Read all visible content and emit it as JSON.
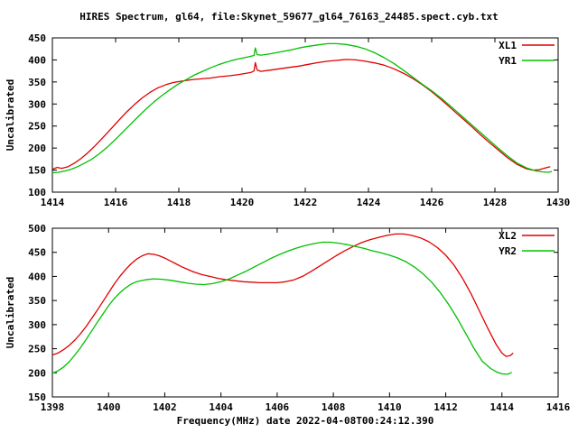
{
  "page": {
    "title": "HIRES Spectrum, gl64, file:Skynet_59677_gl64_76163_24485.spect.cyb.txt"
  },
  "colors": {
    "series_red": "#e00000",
    "series_green": "#00c000",
    "axis": "#000000",
    "background": "#ffffff"
  },
  "chart_data": [
    {
      "id": "top",
      "type": "line",
      "title": "",
      "xlabel": "",
      "ylabel": "Uncalibrated",
      "xlim": [
        1414,
        1430
      ],
      "ylim": [
        100,
        450
      ],
      "xticks": [
        1414,
        1416,
        1418,
        1420,
        1422,
        1424,
        1426,
        1428,
        1430
      ],
      "yticks": [
        100,
        150,
        200,
        250,
        300,
        350,
        400,
        450
      ],
      "grid": false,
      "legend_position": "top-right",
      "series": [
        {
          "name": "XL1",
          "color": "#e00000",
          "points": [
            [
              1414.0,
              152
            ],
            [
              1414.15,
              156
            ],
            [
              1414.3,
              154
            ],
            [
              1414.5,
              158
            ],
            [
              1414.7,
              166
            ],
            [
              1414.9,
              176
            ],
            [
              1415.1,
              188
            ],
            [
              1415.35,
              205
            ],
            [
              1415.6,
              224
            ],
            [
              1415.85,
              243
            ],
            [
              1416.1,
              263
            ],
            [
              1416.35,
              282
            ],
            [
              1416.6,
              299
            ],
            [
              1416.85,
              314
            ],
            [
              1417.1,
              327
            ],
            [
              1417.35,
              337
            ],
            [
              1417.6,
              344
            ],
            [
              1417.85,
              349
            ],
            [
              1418.1,
              352
            ],
            [
              1418.4,
              355
            ],
            [
              1418.7,
              357
            ],
            [
              1419.0,
              359
            ],
            [
              1419.3,
              362
            ],
            [
              1419.6,
              364
            ],
            [
              1419.9,
              367
            ],
            [
              1420.15,
              370
            ],
            [
              1420.3,
              372
            ],
            [
              1420.38,
              375
            ],
            [
              1420.42,
              394
            ],
            [
              1420.48,
              377
            ],
            [
              1420.6,
              374
            ],
            [
              1420.9,
              377
            ],
            [
              1421.2,
              380
            ],
            [
              1421.5,
              383
            ],
            [
              1421.8,
              386
            ],
            [
              1422.1,
              390
            ],
            [
              1422.4,
              394
            ],
            [
              1422.7,
              397
            ],
            [
              1423.0,
              399
            ],
            [
              1423.3,
              401
            ],
            [
              1423.6,
              400
            ],
            [
              1423.9,
              397
            ],
            [
              1424.2,
              393
            ],
            [
              1424.5,
              388
            ],
            [
              1424.8,
              380
            ],
            [
              1425.1,
              370
            ],
            [
              1425.4,
              358
            ],
            [
              1425.7,
              344
            ],
            [
              1426.0,
              328
            ],
            [
              1426.3,
              310
            ],
            [
              1426.6,
              291
            ],
            [
              1426.9,
              272
            ],
            [
              1427.2,
              253
            ],
            [
              1427.5,
              233
            ],
            [
              1427.8,
              214
            ],
            [
              1428.1,
              196
            ],
            [
              1428.4,
              178
            ],
            [
              1428.7,
              163
            ],
            [
              1429.0,
              153
            ],
            [
              1429.2,
              150
            ],
            [
              1429.4,
              151
            ],
            [
              1429.6,
              155
            ],
            [
              1429.75,
              158
            ]
          ]
        },
        {
          "name": "YR1",
          "color": "#00c000",
          "points": [
            [
              1414.0,
              144
            ],
            [
              1414.2,
              145
            ],
            [
              1414.4,
              148
            ],
            [
              1414.6,
              152
            ],
            [
              1414.8,
              158
            ],
            [
              1415.0,
              165
            ],
            [
              1415.25,
              175
            ],
            [
              1415.5,
              188
            ],
            [
              1415.75,
              203
            ],
            [
              1416.0,
              220
            ],
            [
              1416.25,
              238
            ],
            [
              1416.5,
              256
            ],
            [
              1416.75,
              274
            ],
            [
              1417.0,
              291
            ],
            [
              1417.25,
              307
            ],
            [
              1417.5,
              321
            ],
            [
              1417.75,
              334
            ],
            [
              1418.0,
              346
            ],
            [
              1418.25,
              356
            ],
            [
              1418.5,
              366
            ],
            [
              1418.75,
              374
            ],
            [
              1419.0,
              382
            ],
            [
              1419.25,
              389
            ],
            [
              1419.5,
              395
            ],
            [
              1419.75,
              400
            ],
            [
              1420.0,
              404
            ],
            [
              1420.2,
              407
            ],
            [
              1420.38,
              410
            ],
            [
              1420.42,
              427
            ],
            [
              1420.48,
              412
            ],
            [
              1420.6,
              411
            ],
            [
              1420.9,
              414
            ],
            [
              1421.2,
              418
            ],
            [
              1421.5,
              422
            ],
            [
              1421.8,
              427
            ],
            [
              1422.1,
              431
            ],
            [
              1422.4,
              434
            ],
            [
              1422.7,
              437
            ],
            [
              1423.0,
              437
            ],
            [
              1423.3,
              435
            ],
            [
              1423.6,
              431
            ],
            [
              1423.9,
              425
            ],
            [
              1424.2,
              416
            ],
            [
              1424.5,
              405
            ],
            [
              1424.8,
              392
            ],
            [
              1425.1,
              377
            ],
            [
              1425.4,
              361
            ],
            [
              1425.7,
              345
            ],
            [
              1426.0,
              330
            ],
            [
              1426.3,
              313
            ],
            [
              1426.6,
              295
            ],
            [
              1426.9,
              276
            ],
            [
              1427.2,
              257
            ],
            [
              1427.5,
              238
            ],
            [
              1427.8,
              219
            ],
            [
              1428.1,
              200
            ],
            [
              1428.4,
              182
            ],
            [
              1428.7,
              166
            ],
            [
              1429.0,
              155
            ],
            [
              1429.3,
              148
            ],
            [
              1429.5,
              146
            ],
            [
              1429.7,
              145
            ],
            [
              1429.8,
              147
            ]
          ]
        }
      ]
    },
    {
      "id": "bottom",
      "type": "line",
      "title": "",
      "xlabel": "Frequency(MHz) date 2022-04-08T00:24:12.390",
      "ylabel": "Uncalibrated",
      "xlim": [
        1398,
        1416
      ],
      "ylim": [
        150,
        500
      ],
      "xticks": [
        1398,
        1400,
        1402,
        1404,
        1406,
        1408,
        1410,
        1412,
        1414,
        1416
      ],
      "yticks": [
        150,
        200,
        250,
        300,
        350,
        400,
        450,
        500
      ],
      "grid": false,
      "legend_position": "top-right",
      "series": [
        {
          "name": "XL2",
          "color": "#e00000",
          "points": [
            [
              1398.0,
              237
            ],
            [
              1398.2,
              241
            ],
            [
              1398.4,
              248
            ],
            [
              1398.6,
              257
            ],
            [
              1398.8,
              268
            ],
            [
              1399.0,
              281
            ],
            [
              1399.2,
              296
            ],
            [
              1399.4,
              313
            ],
            [
              1399.6,
              330
            ],
            [
              1399.8,
              348
            ],
            [
              1400.0,
              366
            ],
            [
              1400.2,
              384
            ],
            [
              1400.4,
              400
            ],
            [
              1400.6,
              414
            ],
            [
              1400.8,
              426
            ],
            [
              1401.0,
              436
            ],
            [
              1401.2,
              443
            ],
            [
              1401.4,
              447
            ],
            [
              1401.6,
              446
            ],
            [
              1401.8,
              443
            ],
            [
              1402.0,
              438
            ],
            [
              1402.2,
              432
            ],
            [
              1402.4,
              426
            ],
            [
              1402.6,
              420
            ],
            [
              1402.8,
              415
            ],
            [
              1403.0,
              410
            ],
            [
              1403.3,
              404
            ],
            [
              1403.6,
              400
            ],
            [
              1403.9,
              396
            ],
            [
              1404.2,
              393
            ],
            [
              1404.5,
              391
            ],
            [
              1404.8,
              389
            ],
            [
              1405.1,
              388
            ],
            [
              1405.4,
              387
            ],
            [
              1405.7,
              387
            ],
            [
              1406.0,
              387
            ],
            [
              1406.3,
              389
            ],
            [
              1406.6,
              393
            ],
            [
              1406.9,
              400
            ],
            [
              1407.2,
              410
            ],
            [
              1407.5,
              421
            ],
            [
              1407.8,
              432
            ],
            [
              1408.1,
              443
            ],
            [
              1408.4,
              453
            ],
            [
              1408.7,
              462
            ],
            [
              1409.0,
              470
            ],
            [
              1409.3,
              476
            ],
            [
              1409.6,
              481
            ],
            [
              1409.9,
              485
            ],
            [
              1410.2,
              488
            ],
            [
              1410.5,
              488
            ],
            [
              1410.8,
              485
            ],
            [
              1411.1,
              480
            ],
            [
              1411.4,
              472
            ],
            [
              1411.7,
              460
            ],
            [
              1412.0,
              444
            ],
            [
              1412.3,
              423
            ],
            [
              1412.6,
              396
            ],
            [
              1412.9,
              364
            ],
            [
              1413.2,
              328
            ],
            [
              1413.5,
              292
            ],
            [
              1413.8,
              258
            ],
            [
              1414.0,
              241
            ],
            [
              1414.15,
              234
            ],
            [
              1414.3,
              236
            ],
            [
              1414.4,
              241
            ]
          ]
        },
        {
          "name": "YR2",
          "color": "#00c000",
          "points": [
            [
              1398.0,
              199
            ],
            [
              1398.2,
              204
            ],
            [
              1398.4,
              212
            ],
            [
              1398.6,
              223
            ],
            [
              1398.8,
              237
            ],
            [
              1399.0,
              252
            ],
            [
              1399.2,
              269
            ],
            [
              1399.4,
              287
            ],
            [
              1399.6,
              305
            ],
            [
              1399.8,
              322
            ],
            [
              1400.0,
              339
            ],
            [
              1400.2,
              354
            ],
            [
              1400.4,
              366
            ],
            [
              1400.6,
              376
            ],
            [
              1400.8,
              384
            ],
            [
              1401.0,
              389
            ],
            [
              1401.3,
              393
            ],
            [
              1401.6,
              395
            ],
            [
              1401.9,
              394
            ],
            [
              1402.2,
              392
            ],
            [
              1402.5,
              389
            ],
            [
              1402.8,
              386
            ],
            [
              1403.1,
              384
            ],
            [
              1403.4,
              383
            ],
            [
              1403.7,
              385
            ],
            [
              1404.0,
              389
            ],
            [
              1404.3,
              395
            ],
            [
              1404.6,
              403
            ],
            [
              1404.9,
              411
            ],
            [
              1405.2,
              420
            ],
            [
              1405.5,
              429
            ],
            [
              1405.8,
              438
            ],
            [
              1406.1,
              446
            ],
            [
              1406.4,
              453
            ],
            [
              1406.7,
              459
            ],
            [
              1407.0,
              464
            ],
            [
              1407.3,
              468
            ],
            [
              1407.6,
              471
            ],
            [
              1407.9,
              471
            ],
            [
              1408.2,
              469
            ],
            [
              1408.5,
              466
            ],
            [
              1408.8,
              462
            ],
            [
              1409.1,
              458
            ],
            [
              1409.4,
              453
            ],
            [
              1409.7,
              449
            ],
            [
              1410.0,
              444
            ],
            [
              1410.3,
              438
            ],
            [
              1410.6,
              430
            ],
            [
              1410.9,
              419
            ],
            [
              1411.2,
              405
            ],
            [
              1411.5,
              388
            ],
            [
              1411.8,
              367
            ],
            [
              1412.1,
              342
            ],
            [
              1412.4,
              314
            ],
            [
              1412.7,
              283
            ],
            [
              1413.0,
              251
            ],
            [
              1413.3,
              224
            ],
            [
              1413.6,
              209
            ],
            [
              1413.8,
              202
            ],
            [
              1414.0,
              198
            ],
            [
              1414.2,
              197
            ],
            [
              1414.35,
              201
            ]
          ]
        }
      ]
    }
  ]
}
